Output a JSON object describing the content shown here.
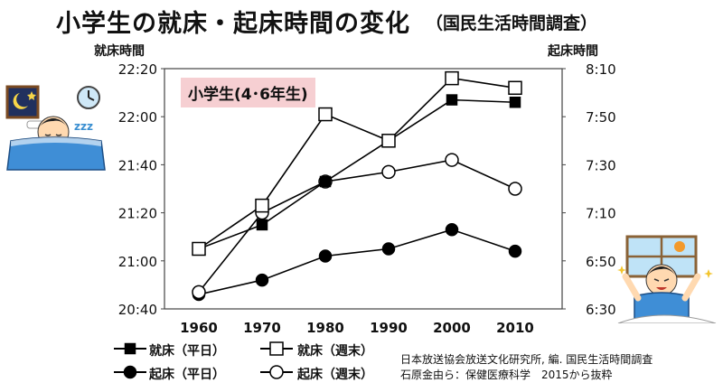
{
  "title": "小学生の就床・起床時間の変化",
  "subtitle": "（国民生活時間調査）",
  "subset_label": "小学生(4･6年生)",
  "source_lines": [
    "日本放送協会放送文化研究所, 編. 国民生活時間調査",
    "石原金由ら：保健医療科学　2015から抜粋"
  ],
  "chart_data": {
    "type": "line",
    "title": "小学生の就床・起床時間の変化",
    "x": [
      1960,
      1970,
      1980,
      1990,
      2000,
      2010
    ],
    "x_tick_labels": [
      "1960",
      "1970",
      "1980",
      "1990",
      "2000",
      "2010"
    ],
    "y_left_label": "就床時間",
    "y_left_ticks": [
      "20:40",
      "21:00",
      "21:20",
      "21:40",
      "22:00",
      "22:20"
    ],
    "y_left_range_minutes": [
      1240,
      1340
    ],
    "y_right_label": "起床時間",
    "y_right_ticks": [
      "6:30",
      "6:50",
      "7:10",
      "7:30",
      "7:50",
      "8:10"
    ],
    "y_right_range_minutes": [
      390,
      490
    ],
    "grid": false,
    "legend_position": "bottom",
    "series": [
      {
        "name": "就床（平日）",
        "axis": "left",
        "marker": "filled-square",
        "values": [
          "21:05",
          "21:15",
          "21:33",
          "21:50",
          "22:07",
          "22:06"
        ]
      },
      {
        "name": "就床（週末）",
        "axis": "left",
        "marker": "open-square",
        "values": [
          "21:05",
          "21:23",
          "22:01",
          "21:50",
          "22:16",
          "22:12"
        ]
      },
      {
        "name": "起床（平日）",
        "axis": "right",
        "marker": "filled-circle",
        "values": [
          "6:36",
          "6:42",
          "6:52",
          "6:55",
          "7:03",
          "6:54"
        ]
      },
      {
        "name": "起床（週末）",
        "axis": "right",
        "marker": "open-circle",
        "values": [
          "6:37",
          "7:10",
          "7:23",
          "7:27",
          "7:32",
          "7:20"
        ]
      }
    ]
  }
}
